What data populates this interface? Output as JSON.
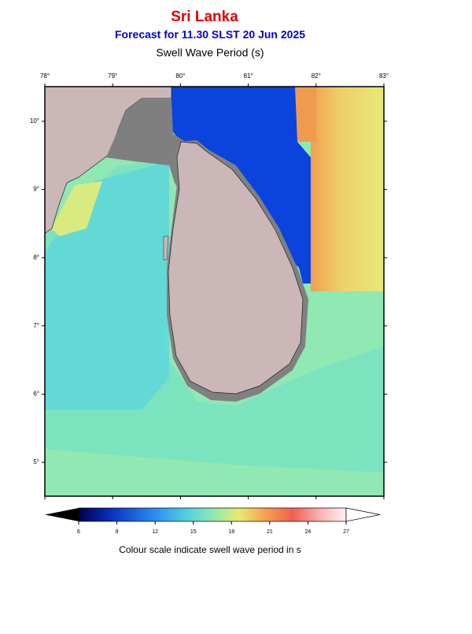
{
  "header": {
    "title": "Sri Lanka",
    "subtitle": "Forecast for  11.30 SLST 20 Jun 2025",
    "variable": "Swell Wave Period (s)"
  },
  "map": {
    "longitude_labels": [
      "78°",
      "79°",
      "80°",
      "81°",
      "82°",
      "83°"
    ],
    "latitude_labels": [
      "10°",
      "9°",
      "8°",
      "7°",
      "6°",
      "5°"
    ]
  },
  "colorbar": {
    "ticks": [
      6,
      9,
      12,
      15,
      18,
      21,
      24,
      27
    ]
  },
  "caption": "Colour scale indicate swell wave period in s"
}
